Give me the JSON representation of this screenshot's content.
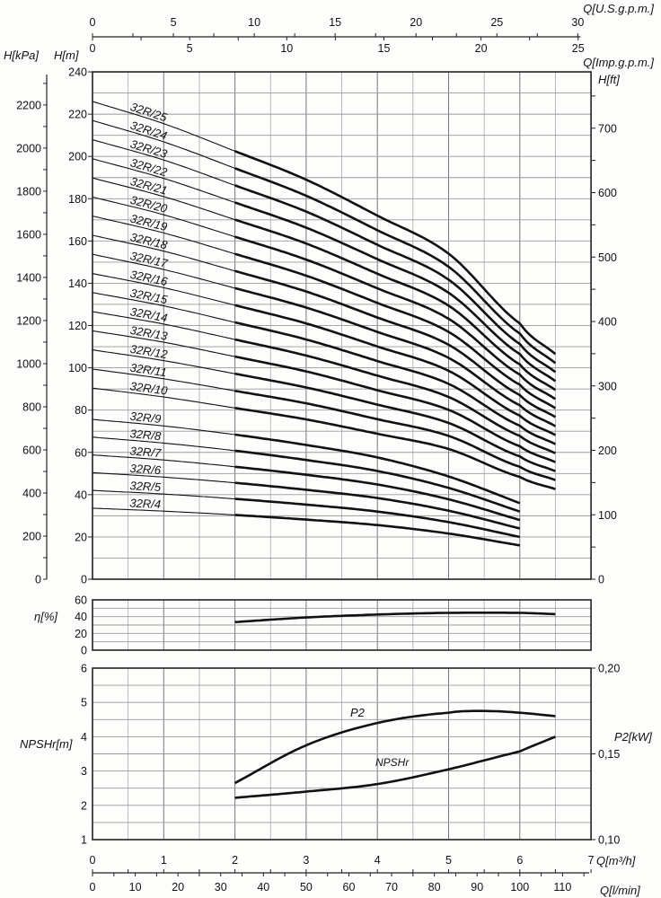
{
  "axis_titles": {
    "q_usgpm": "Q[U.S.g.p.m.]",
    "q_impgpm": "Q[Imp.g.p.m.]",
    "h_kpa": "H[kPa]",
    "h_m": "H[m]",
    "h_ft": "H[ft]",
    "eta": "η[%]",
    "npshr": "NPSHr[m]",
    "p2": "P2[kW]",
    "q_m3h": "Q[m³/h]",
    "q_lmin": "Q[l/min]"
  },
  "annotations": {
    "p2": "P2",
    "npshr": "NPSHr"
  },
  "ticks": {
    "usgpm": [
      "0",
      "5",
      "10",
      "15",
      "20",
      "25",
      "30"
    ],
    "impgpm": [
      "0",
      "5",
      "10",
      "15",
      "20",
      "25"
    ],
    "h_m": [
      "0",
      "20",
      "40",
      "60",
      "80",
      "100",
      "120",
      "140",
      "160",
      "180",
      "200",
      "220",
      "240"
    ],
    "h_kpa": [
      "0",
      "200",
      "400",
      "600",
      "800",
      "1000",
      "1200",
      "1400",
      "1600",
      "1800",
      "2000",
      "2200"
    ],
    "h_ft": [
      "0",
      "100",
      "200",
      "300",
      "400",
      "500",
      "600",
      "700"
    ],
    "eta": [
      "0",
      "20",
      "40",
      "60"
    ],
    "npshr": [
      "1",
      "2",
      "3",
      "4",
      "5",
      "6"
    ],
    "p2": [
      "0,10",
      "0,15",
      "0,20"
    ],
    "q_m3h": [
      "0",
      "1",
      "2",
      "3",
      "4",
      "5",
      "6",
      "7"
    ],
    "q_lmin": [
      "0",
      "10",
      "20",
      "30",
      "40",
      "50",
      "60",
      "70",
      "80",
      "90",
      "100",
      "110"
    ]
  },
  "chart_data": [
    {
      "type": "line",
      "xlabel": "Q[m³/h]",
      "ylabel": "H[m]",
      "xlim": [
        0,
        7
      ],
      "ylim": [
        0,
        240
      ],
      "grid": true,
      "secondary_axes": {
        "left": "H[kPa]",
        "right": "H[ft]",
        "top": [
          "Q[U.S.g.p.m.]",
          "Q[Imp.g.p.m.]"
        ],
        "bottom": "Q[l/min]"
      },
      "series": [
        {
          "name": "32R/25",
          "x": [
            0,
            1,
            2,
            3,
            4,
            5,
            6,
            6.5
          ],
          "y": [
            226,
            215.5,
            202.5,
            189,
            172,
            154,
            121,
            106.5
          ]
        },
        {
          "name": "32R/24",
          "x": [
            0,
            1,
            2,
            3,
            4,
            5,
            6,
            6.5
          ],
          "y": [
            217,
            206.9,
            194.4,
            181.4,
            165.1,
            147.8,
            116.2,
            102.2
          ]
        },
        {
          "name": "32R/23",
          "x": [
            0,
            1,
            2,
            3,
            4,
            5,
            6,
            6.5
          ],
          "y": [
            207.9,
            198.3,
            186.3,
            173.9,
            158.2,
            141.7,
            111.3,
            98
          ]
        },
        {
          "name": "32R/22",
          "x": [
            0,
            1,
            2,
            3,
            4,
            5,
            6,
            6.5
          ],
          "y": [
            198.9,
            189.6,
            178.2,
            166.3,
            151.4,
            135.5,
            106.5,
            93.7
          ]
        },
        {
          "name": "32R/21",
          "x": [
            0,
            1,
            2,
            3,
            4,
            5,
            6,
            6.5
          ],
          "y": [
            189.8,
            181,
            170.1,
            158.8,
            144.5,
            129.4,
            101.6,
            89.5
          ]
        },
        {
          "name": "32R/20",
          "x": [
            0,
            1,
            2,
            3,
            4,
            5,
            6,
            6.5
          ],
          "y": [
            180.8,
            172.4,
            162,
            151.2,
            137.6,
            123.2,
            96.8,
            85.2
          ]
        },
        {
          "name": "32R/19",
          "x": [
            0,
            1,
            2,
            3,
            4,
            5,
            6,
            6.5
          ],
          "y": [
            171.8,
            163.8,
            153.9,
            143.6,
            130.7,
            117,
            92,
            80.9
          ]
        },
        {
          "name": "32R/18",
          "x": [
            0,
            1,
            2,
            3,
            4,
            5,
            6,
            6.5
          ],
          "y": [
            162.7,
            155.2,
            145.8,
            136.1,
            123.8,
            110.9,
            87.1,
            76.7
          ]
        },
        {
          "name": "32R/17",
          "x": [
            0,
            1,
            2,
            3,
            4,
            5,
            6,
            6.5
          ],
          "y": [
            153.7,
            146.5,
            137.7,
            128.5,
            117,
            104.7,
            82.3,
            72.4
          ]
        },
        {
          "name": "32R/16",
          "x": [
            0,
            1,
            2,
            3,
            4,
            5,
            6,
            6.5
          ],
          "y": [
            144.6,
            137.9,
            129.6,
            121,
            110.1,
            98.6,
            77.4,
            68.2
          ]
        },
        {
          "name": "32R/15",
          "x": [
            0,
            1,
            2,
            3,
            4,
            5,
            6,
            6.5
          ],
          "y": [
            135.6,
            129.3,
            121.5,
            113.4,
            103.2,
            92.4,
            72.6,
            63.9
          ]
        },
        {
          "name": "32R/14",
          "x": [
            0,
            1,
            2,
            3,
            4,
            5,
            6,
            6.5
          ],
          "y": [
            126.6,
            120.7,
            113.4,
            105.8,
            96.3,
            86.2,
            67.8,
            59.6
          ]
        },
        {
          "name": "32R/13",
          "x": [
            0,
            1,
            2,
            3,
            4,
            5,
            6,
            6.5
          ],
          "y": [
            117.5,
            112.1,
            105.3,
            98.3,
            89.4,
            80.1,
            62.9,
            55.4
          ]
        },
        {
          "name": "32R/12",
          "x": [
            0,
            1,
            2,
            3,
            4,
            5,
            6,
            6.5
          ],
          "y": [
            108.5,
            103.4,
            97.2,
            90.7,
            82.6,
            73.9,
            58.1,
            51.1
          ]
        },
        {
          "name": "32R/11",
          "x": [
            0,
            1,
            2,
            3,
            4,
            5,
            6,
            6.5
          ],
          "y": [
            99.4,
            94.8,
            89.1,
            83.2,
            75.7,
            67.8,
            53.2,
            46.9
          ]
        },
        {
          "name": "32R/10",
          "x": [
            0,
            1,
            2,
            3,
            4,
            5,
            6,
            6.5
          ],
          "y": [
            90.4,
            86.2,
            81,
            75.6,
            68.8,
            61.6,
            48.4,
            42.6
          ]
        },
        {
          "name": "32R/9",
          "x": [
            0,
            1,
            2,
            3,
            4,
            5,
            6
          ],
          "y": [
            75.6,
            72.5,
            68.4,
            63.5,
            57.6,
            48.6,
            36
          ]
        },
        {
          "name": "32R/8",
          "x": [
            0,
            1,
            2,
            3,
            4,
            5,
            6
          ],
          "y": [
            67.2,
            64.4,
            60.8,
            56.4,
            51.2,
            43.2,
            32
          ]
        },
        {
          "name": "32R/7",
          "x": [
            0,
            1,
            2,
            3,
            4,
            5,
            6
          ],
          "y": [
            58.8,
            56.4,
            53.2,
            49.4,
            44.8,
            37.8,
            28
          ]
        },
        {
          "name": "32R/6",
          "x": [
            0,
            1,
            2,
            3,
            4,
            5,
            6
          ],
          "y": [
            50.4,
            48.3,
            45.6,
            42.3,
            38.4,
            32.4,
            24
          ]
        },
        {
          "name": "32R/5",
          "x": [
            0,
            1,
            2,
            3,
            4,
            5,
            6
          ],
          "y": [
            42,
            40.3,
            38,
            35.3,
            32,
            27,
            20
          ]
        },
        {
          "name": "32R/4",
          "x": [
            0,
            1,
            2,
            3,
            4,
            5,
            6
          ],
          "y": [
            33.6,
            32.2,
            30.4,
            28.2,
            25.6,
            21.6,
            16
          ]
        }
      ]
    },
    {
      "type": "line",
      "ylabel": "η[%]",
      "xlim": [
        0,
        7
      ],
      "ylim": [
        0,
        60
      ],
      "grid": true,
      "series": [
        {
          "x": [
            2,
            3,
            4,
            5,
            6,
            6.5
          ],
          "y": [
            33.5,
            39,
            42.5,
            44.5,
            44.5,
            43
          ]
        }
      ]
    },
    {
      "type": "line",
      "ylabel": "NPSHr[m]",
      "y2label": "P2[kW]",
      "xlabel": "Q[m³/h]",
      "xlim": [
        0,
        7
      ],
      "ylim": [
        1,
        6
      ],
      "y2lim": [
        0.1,
        0.2
      ],
      "grid": true,
      "series": [
        {
          "name": "P2",
          "axis": "right",
          "x": [
            2,
            3,
            4,
            5,
            5.5,
            6,
            6.5
          ],
          "y": [
            0.133,
            0.155,
            0.168,
            0.174,
            0.175,
            0.174,
            0.172
          ]
        },
        {
          "name": "NPSHr",
          "axis": "left",
          "x": [
            2,
            3,
            4,
            5,
            6,
            6.5
          ],
          "y": [
            2.22,
            2.4,
            2.62,
            3.05,
            3.57,
            4.0
          ]
        }
      ]
    }
  ]
}
